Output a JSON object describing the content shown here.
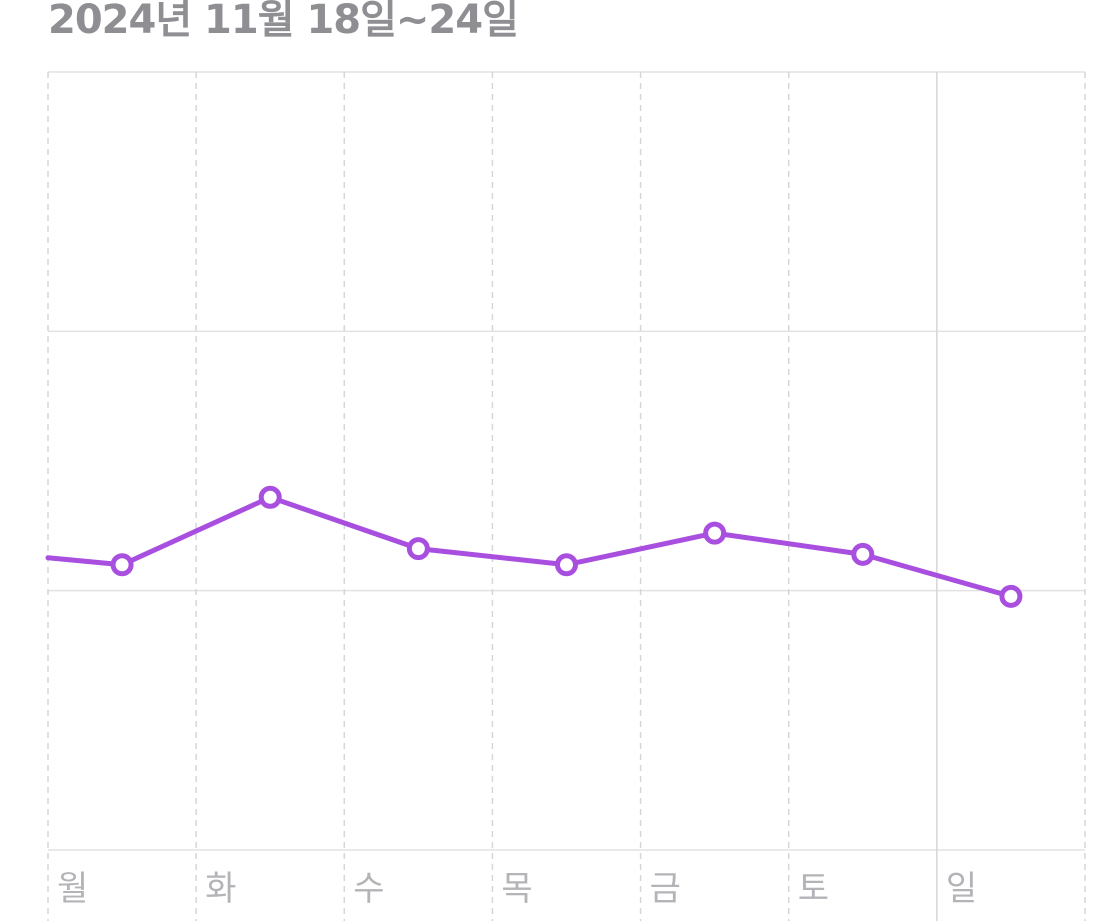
{
  "header": {
    "date_range": "2024년 11월 18일~24일"
  },
  "chart_data": {
    "type": "line",
    "title": "",
    "xlabel": "",
    "ylabel": "",
    "categories": [
      "월",
      "화",
      "수",
      "목",
      "금",
      "토",
      "일"
    ],
    "incoming_value": 3.27,
    "series": [
      {
        "values": [
          3.0,
          5.6,
          3.62,
          3.0,
          4.22,
          3.4,
          1.78
        ]
      }
    ],
    "ylim": [
      -8,
      22
    ],
    "y_gridlines": [
      22,
      12,
      2,
      -8
    ],
    "grid": true,
    "color": "#a94fe0"
  }
}
